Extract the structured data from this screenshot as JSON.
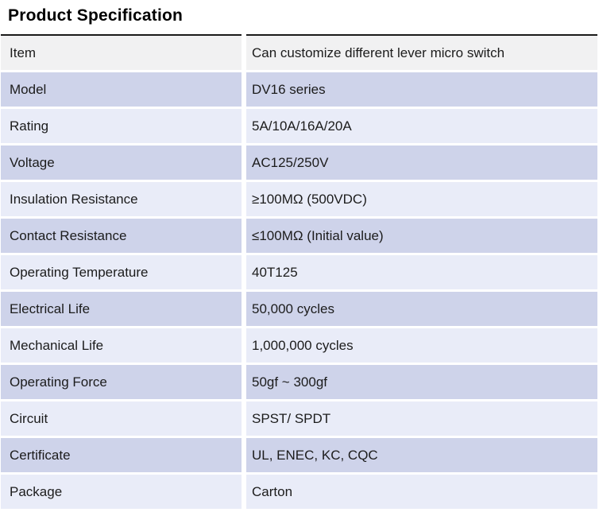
{
  "title": "Product Specification",
  "table": {
    "rows": [
      {
        "key": "Item",
        "value": "Can customize different lever micro switch"
      },
      {
        "key": "Model",
        "value": "DV16 series"
      },
      {
        "key": "Rating",
        "value": "5A/10A/16A/20A"
      },
      {
        "key": "Voltage",
        "value": "AC125/250V"
      },
      {
        "key": "Insulation Resistance",
        "value": "≥100MΩ (500VDC)"
      },
      {
        "key": "Contact Resistance",
        "value": "≤100MΩ (Initial value)"
      },
      {
        "key": "Operating Temperature",
        "value": "40T125"
      },
      {
        "key": "Electrical Life",
        "value": "50,000 cycles"
      },
      {
        "key": "Mechanical Life",
        "value": "1,000,000 cycles"
      },
      {
        "key": "Operating Force",
        "value": "50gf ~ 300gf"
      },
      {
        "key": "Circuit",
        "value": "SPST/ SPDT"
      },
      {
        "key": "Certificate",
        "value": "UL, ENEC, KC, CQC"
      },
      {
        "key": "Package",
        "value": "Carton"
      }
    ]
  },
  "colors": {
    "row_gray": "#f1f1f2",
    "row_medium": "#ced3ea",
    "row_light": "#e9ecf8",
    "top_border": "#1a1a1a",
    "text": "#1c1c1c"
  }
}
